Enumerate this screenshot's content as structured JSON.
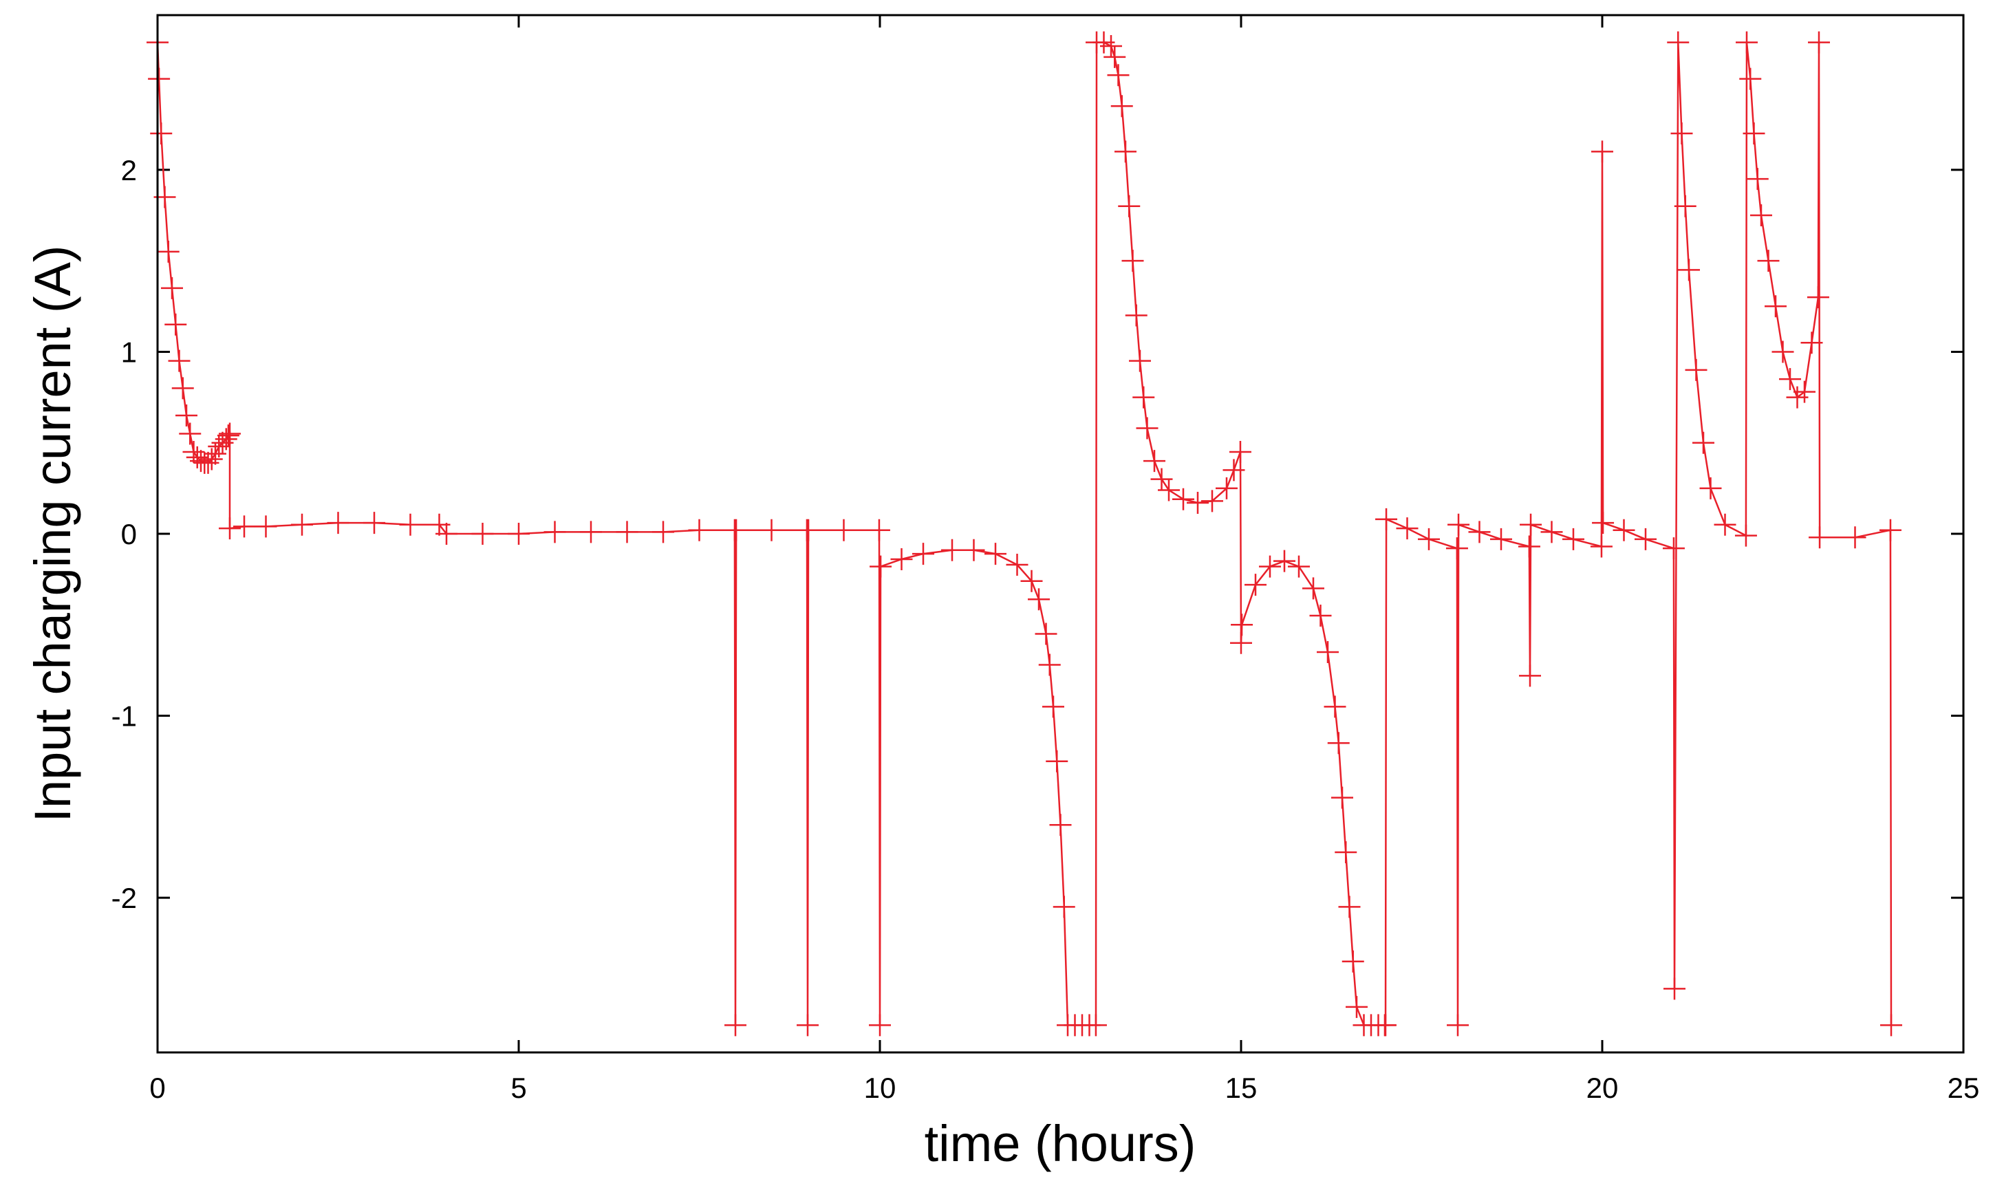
{
  "chart_data": {
    "type": "line",
    "title": "",
    "xlabel": "time (hours)",
    "ylabel": "Input charging current (A)",
    "xlim": [
      0,
      25
    ],
    "ylim": [
      -2.85,
      2.85
    ],
    "x_ticks": [
      0,
      5,
      10,
      15,
      20,
      25
    ],
    "x_tick_labels": [
      "0",
      "5",
      "10",
      "15",
      "20",
      "25"
    ],
    "y_ticks": [
      -2,
      -1,
      0,
      1,
      2
    ],
    "y_tick_labels": [
      "-2",
      "-1",
      "0",
      "1",
      "2"
    ],
    "grid": false,
    "legend": "none",
    "marker": "plus",
    "series_color": "#e8202a",
    "series": [
      {
        "x": [
          0.0,
          0.02,
          0.05,
          0.1,
          0.15,
          0.2,
          0.25,
          0.3,
          0.35,
          0.4,
          0.45,
          0.5,
          0.55,
          0.6,
          0.65,
          0.7,
          0.75,
          0.8,
          0.85,
          0.9,
          0.95,
          0.98,
          1.0,
          1.0,
          1.2,
          1.5,
          2.0,
          2.5,
          3.0,
          3.5,
          3.9,
          4.0,
          4.5,
          5.0,
          5.5,
          6.0,
          6.5,
          7.0,
          7.5,
          7.99,
          8.0,
          8.01,
          8.5,
          8.99,
          9.0,
          9.01,
          9.5,
          9.99,
          10.0,
          10.01,
          10.3,
          10.6,
          11.0,
          11.3,
          11.6,
          11.9,
          12.1,
          12.2,
          12.3,
          12.35,
          12.4,
          12.45,
          12.5,
          12.55,
          12.6,
          12.7,
          12.8,
          12.9,
          12.99,
          13.0,
          13.1,
          13.2,
          13.25,
          13.3,
          13.35,
          13.4,
          13.45,
          13.5,
          13.55,
          13.6,
          13.65,
          13.7,
          13.8,
          13.9,
          14.0,
          14.2,
          14.4,
          14.6,
          14.8,
          14.9,
          14.99,
          15.0,
          15.01,
          15.2,
          15.4,
          15.6,
          15.8,
          16.0,
          16.1,
          16.2,
          16.3,
          16.35,
          16.4,
          16.45,
          16.5,
          16.55,
          16.6,
          16.7,
          16.8,
          16.9,
          16.99,
          17.0,
          17.01,
          17.3,
          17.6,
          17.99,
          18.0,
          18.01,
          18.3,
          18.6,
          18.99,
          19.0,
          19.01,
          19.3,
          19.6,
          19.99,
          20.0,
          20.01,
          20.3,
          20.6,
          20.99,
          21.0,
          21.05,
          21.1,
          21.15,
          21.2,
          21.3,
          21.4,
          21.5,
          21.7,
          21.99,
          22.0,
          22.05,
          22.1,
          22.15,
          22.2,
          22.3,
          22.4,
          22.5,
          22.6,
          22.7,
          22.8,
          22.9,
          22.99,
          23.0,
          23.01,
          23.5,
          23.99,
          24.0
        ],
        "y": [
          2.7,
          2.5,
          2.2,
          1.85,
          1.55,
          1.35,
          1.15,
          0.95,
          0.8,
          0.65,
          0.55,
          0.45,
          0.42,
          0.4,
          0.39,
          0.39,
          0.41,
          0.44,
          0.48,
          0.5,
          0.52,
          0.54,
          0.55,
          0.03,
          0.04,
          0.04,
          0.05,
          0.06,
          0.06,
          0.05,
          0.05,
          0.0,
          0.0,
          0.0,
          0.01,
          0.01,
          0.01,
          0.01,
          0.02,
          0.02,
          -2.7,
          0.02,
          0.02,
          0.02,
          -2.7,
          0.02,
          0.02,
          0.02,
          -2.7,
          -0.18,
          -0.14,
          -0.11,
          -0.09,
          -0.09,
          -0.11,
          -0.17,
          -0.26,
          -0.36,
          -0.55,
          -0.72,
          -0.95,
          -1.25,
          -1.6,
          -2.05,
          -2.7,
          -2.7,
          -2.7,
          -2.7,
          -2.7,
          2.7,
          2.7,
          2.68,
          2.62,
          2.52,
          2.35,
          2.1,
          1.8,
          1.5,
          1.2,
          0.95,
          0.75,
          0.58,
          0.4,
          0.3,
          0.24,
          0.19,
          0.17,
          0.18,
          0.25,
          0.35,
          0.45,
          -0.6,
          -0.5,
          -0.28,
          -0.18,
          -0.15,
          -0.18,
          -0.3,
          -0.45,
          -0.65,
          -0.95,
          -1.15,
          -1.45,
          -1.75,
          -2.05,
          -2.35,
          -2.6,
          -2.7,
          -2.7,
          -2.7,
          -2.7,
          -2.7,
          0.08,
          0.03,
          -0.03,
          -0.08,
          -2.7,
          0.05,
          0.01,
          -0.03,
          -0.07,
          -0.78,
          0.05,
          0.01,
          -0.03,
          -0.07,
          2.1,
          0.06,
          0.02,
          -0.03,
          -0.08,
          -2.5,
          2.7,
          2.2,
          1.8,
          1.45,
          0.9,
          0.5,
          0.25,
          0.05,
          -0.01,
          2.7,
          2.5,
          2.2,
          1.95,
          1.75,
          1.5,
          1.25,
          1.0,
          0.85,
          0.75,
          0.78,
          1.05,
          1.3,
          2.7,
          -0.02,
          -0.02,
          0.02,
          -2.7
        ]
      }
    ]
  }
}
